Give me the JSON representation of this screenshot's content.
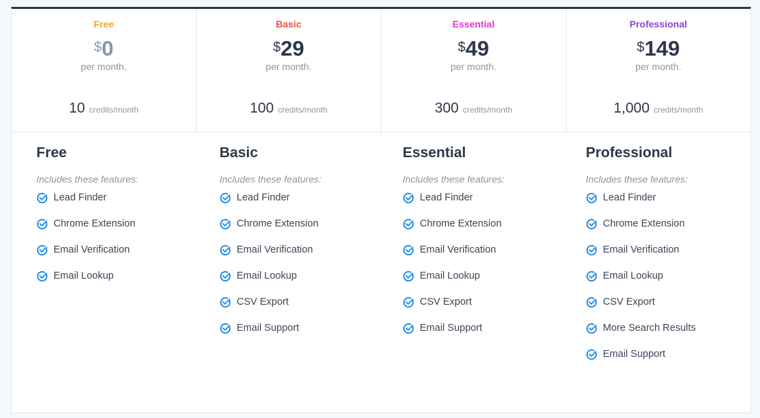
{
  "plans": [
    {
      "name": "Free",
      "color": "#f5a623",
      "currency": "$",
      "price": "0",
      "period": "per month.",
      "credits": "10",
      "credits_unit": "credits/month",
      "features_label": "Includes these features:",
      "features": [
        "Lead Finder",
        "Chrome Extension",
        "Email Verification",
        "Email Lookup"
      ]
    },
    {
      "name": "Basic",
      "color": "#e8543f",
      "currency": "$",
      "price": "29",
      "period": "per month.",
      "credits": "100",
      "credits_unit": "credits/month",
      "features_label": "Includes these features:",
      "features": [
        "Lead Finder",
        "Chrome Extension",
        "Email Verification",
        "Email Lookup",
        "CSV Export",
        "Email Support"
      ]
    },
    {
      "name": "Essential",
      "color": "#e535d3",
      "currency": "$",
      "price": "49",
      "period": "per month.",
      "credits": "300",
      "credits_unit": "credits/month",
      "features_label": "Includes these features:",
      "features": [
        "Lead Finder",
        "Chrome Extension",
        "Email Verification",
        "Email Lookup",
        "CSV Export",
        "Email Support"
      ]
    },
    {
      "name": "Professional",
      "color": "#8e44c9",
      "currency": "$",
      "price": "149",
      "period": "per month.",
      "credits": "1,000",
      "credits_unit": "credits/month",
      "features_label": "Includes these features:",
      "features": [
        "Lead Finder",
        "Chrome Extension",
        "Email Verification",
        "Email Lookup",
        "CSV Export",
        "More Search Results",
        "Email Support"
      ]
    }
  ],
  "icons": {
    "feature": "check-circle-icon"
  },
  "colors": {
    "check": "#1e88e5",
    "border_top": "#2d3748"
  }
}
